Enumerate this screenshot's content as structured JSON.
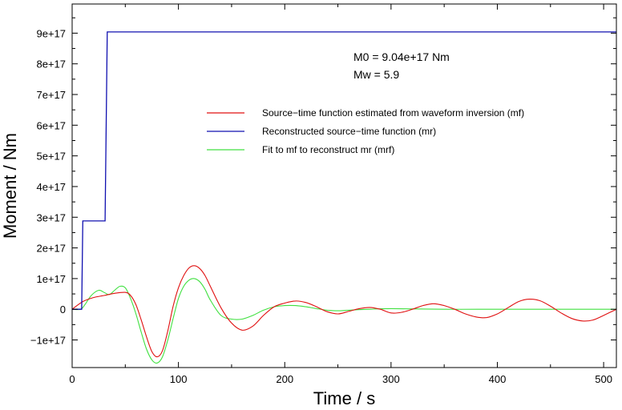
{
  "chart_data": {
    "type": "line",
    "xlabel": "Time / s",
    "ylabel": "Moment / Nm",
    "xlim": [
      0,
      512
    ],
    "ylim": [
      -1.9e+17,
      9.95e+17
    ],
    "xticks": [
      0,
      100,
      200,
      300,
      400,
      500
    ],
    "xtick_labels": [
      "0",
      "100",
      "200",
      "300",
      "400",
      "500"
    ],
    "yticks": [
      -1e+17,
      0,
      1e+17,
      2e+17,
      3e+17,
      4e+17,
      5e+17,
      6e+17,
      7e+17,
      8e+17,
      9e+17
    ],
    "ytick_labels": [
      "−1e+17",
      "0",
      "1e+17",
      "2e+17",
      "3e+17",
      "4e+17",
      "5e+17",
      "6e+17",
      "7e+17",
      "8e+17",
      "9e+17"
    ],
    "grid": false,
    "legend_position": "center-right",
    "annotations": [
      "M0 = 9.04e+17 Nm",
      "Mw = 5.9"
    ],
    "series": [
      {
        "name": "Source−time function estimated from waveform inversion (mf)",
        "color": "#e01010",
        "x": [
          0,
          10,
          20,
          30,
          40,
          50,
          55,
          60,
          65,
          70,
          75,
          80,
          85,
          90,
          95,
          100,
          105,
          110,
          115,
          120,
          125,
          130,
          140,
          150,
          160,
          170,
          180,
          190,
          200,
          210,
          220,
          230,
          240,
          250,
          260,
          270,
          280,
          290,
          300,
          310,
          320,
          330,
          340,
          350,
          360,
          370,
          380,
          390,
          400,
          410,
          420,
          430,
          440,
          450,
          460,
          470,
          480,
          490,
          500,
          512
        ],
        "y": [
          0,
          2.5e+16,
          3.8e+16,
          4.5e+16,
          5.2e+16,
          5.5e+16,
          4.5e+16,
          1.5e+16,
          -3.5e+16,
          -9e+16,
          -1.38e+17,
          -1.55e+17,
          -1.35e+17,
          -7e+16,
          1e+16,
          7e+16,
          1.1e+17,
          1.35e+17,
          1.42e+17,
          1.33e+17,
          1.1e+17,
          7.5e+16,
          5000000000000000.0,
          -4.5e+16,
          -6.8e+16,
          -5.5e+16,
          -2e+16,
          8000000000000000.0,
          2e+16,
          2.7e+16,
          2.2e+16,
          8000000000000000.0,
          -8000000000000000.0,
          -1.5e+16,
          -7000000000000000.0,
          2000000000000000.0,
          6000000000000000.0,
          0,
          -1.2e+16,
          -1e+16,
          0,
          1.2e+16,
          1.8e+16,
          1.2e+16,
          0,
          -1.5e+16,
          -2.5e+16,
          -2.7e+16,
          -1.5e+16,
          5000000000000000.0,
          2.5e+16,
          3.3e+16,
          2.8e+16,
          1e+16,
          -1.2e+16,
          -3e+16,
          -3.8e+16,
          -3.5e+16,
          -2e+16,
          0
        ]
      },
      {
        "name": "Reconstructed source−time function (mr)",
        "color": "#1010b0",
        "x": [
          0,
          9,
          10,
          31,
          33,
          512
        ],
        "y": [
          0,
          0,
          2.88e+17,
          2.88e+17,
          9.04e+17,
          9.04e+17
        ]
      },
      {
        "name": "Fit to mf to reconstruct mr (mrf)",
        "color": "#40e040",
        "x": [
          0,
          8,
          12,
          18,
          25,
          30,
          35,
          40,
          45,
          50,
          55,
          60,
          65,
          70,
          75,
          80,
          85,
          90,
          95,
          100,
          105,
          110,
          115,
          120,
          125,
          130,
          140,
          150,
          160,
          170,
          180,
          190,
          200,
          210,
          220,
          230,
          240,
          250,
          260,
          280,
          300,
          350,
          400,
          450,
          512
        ],
        "y": [
          0,
          0,
          1.5e+16,
          4.5e+16,
          6.2e+16,
          5.5e+16,
          4.8e+16,
          6.2e+16,
          7.5e+16,
          7e+16,
          3.5e+16,
          -1.5e+16,
          -7.5e+16,
          -1.3e+17,
          -1.65e+17,
          -1.75e+17,
          -1.55e+17,
          -1e+17,
          -3e+16,
          3.5e+16,
          7.5e+16,
          9.5e+16,
          1e+17,
          9e+16,
          6.5e+16,
          3e+16,
          -2e+16,
          -3.2e+16,
          -3.2e+16,
          -2e+16,
          -3000000000000000.0,
          8000000000000000.0,
          1.2e+16,
          1.2e+16,
          8000000000000000.0,
          2000000000000000.0,
          -3000000000000000.0,
          -5000000000000000.0,
          -3000000000000000.0,
          0,
          2000000000000000.0,
          0,
          0,
          0,
          0
        ]
      }
    ]
  }
}
